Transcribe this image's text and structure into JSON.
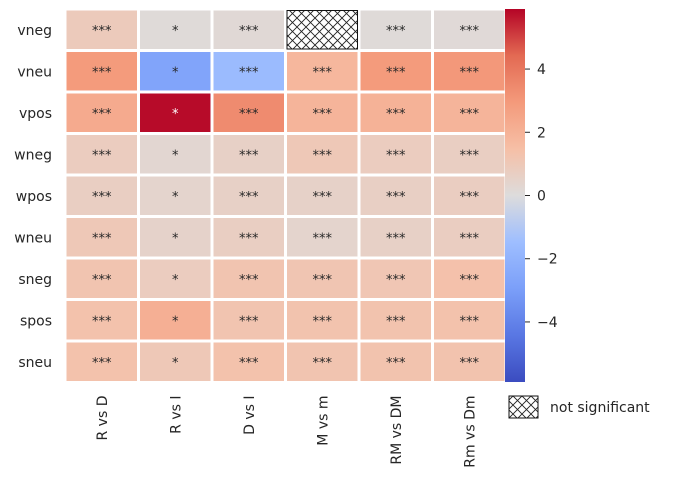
{
  "chart_data": {
    "type": "heatmap",
    "title": "",
    "xlabel": "",
    "ylabel": "",
    "rows": [
      "vneg",
      "vneu",
      "vpos",
      "wneg",
      "wpos",
      "wneu",
      "sneg",
      "spos",
      "sneu"
    ],
    "columns": [
      "R vs D",
      "R vs I",
      "D vs I",
      "M vs m",
      "RM vs DM",
      "Rm vs Dm"
    ],
    "values": [
      [
        0.9,
        0.1,
        0.2,
        null,
        0.1,
        0.15
      ],
      [
        2.9,
        -2.7,
        -1.6,
        1.8,
        2.9,
        3.0
      ],
      [
        2.3,
        5.8,
        3.4,
        1.9,
        2.0,
        1.9
      ],
      [
        0.8,
        0.3,
        0.6,
        1.0,
        0.8,
        0.7
      ],
      [
        0.7,
        0.4,
        0.6,
        0.55,
        0.65,
        0.75
      ],
      [
        1.0,
        0.5,
        0.7,
        0.4,
        0.6,
        0.75
      ],
      [
        1.2,
        0.8,
        1.2,
        1.15,
        1.1,
        1.35
      ],
      [
        1.3,
        2.1,
        1.2,
        1.25,
        1.25,
        1.3
      ],
      [
        1.3,
        1.0,
        1.3,
        1.2,
        1.25,
        1.25
      ]
    ],
    "annotations": [
      [
        "***",
        "*",
        "***",
        "",
        "***",
        "***"
      ],
      [
        "***",
        "*",
        "***",
        "***",
        "***",
        "***"
      ],
      [
        "***",
        "*",
        "***",
        "***",
        "***",
        "***"
      ],
      [
        "***",
        "*",
        "***",
        "***",
        "***",
        "***"
      ],
      [
        "***",
        "*",
        "***",
        "***",
        "***",
        "***"
      ],
      [
        "***",
        "*",
        "***",
        "***",
        "***",
        "***"
      ],
      [
        "***",
        "*",
        "***",
        "***",
        "***",
        "***"
      ],
      [
        "***",
        "*",
        "***",
        "***",
        "***",
        "***"
      ],
      [
        "***",
        "*",
        "***",
        "***",
        "***",
        "***"
      ]
    ],
    "colormap": "coolwarm",
    "color_range": [
      -5.9,
      5.9
    ],
    "colorbar_ticks": [
      4,
      2,
      0,
      -2,
      -4
    ],
    "colorbar_tick_labels": [
      "4",
      "2",
      "0",
      "−2",
      "−4"
    ],
    "legend": {
      "label": "not significant",
      "pattern": "crosshatch"
    }
  }
}
